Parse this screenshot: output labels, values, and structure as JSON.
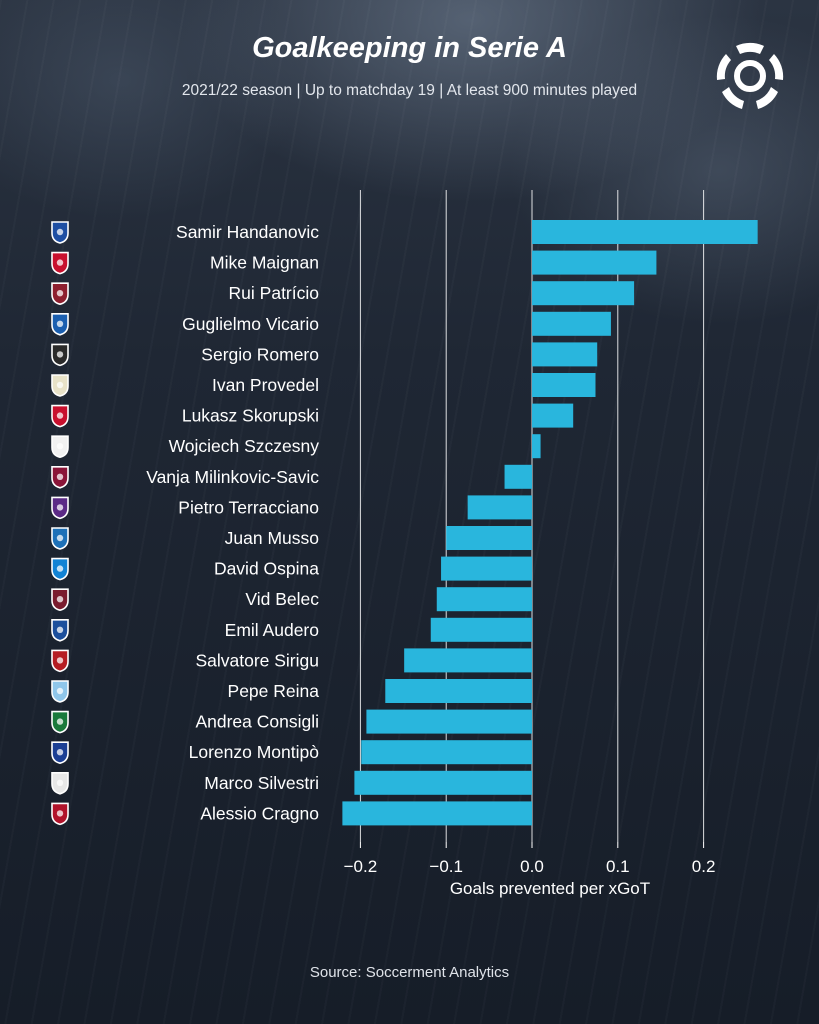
{
  "header": {
    "title": "Goalkeeping in Serie A",
    "subtitle": "2021/22 season | Up to matchday 19 | At least 900 minutes played"
  },
  "footer": {
    "source": "Source: Soccerment Analytics"
  },
  "colors": {
    "bar": "#29b6dd",
    "background": "#1a222f",
    "grid": "#ffffff",
    "text": "#ffffff"
  },
  "logo": {
    "icon": "soccerment-ball-logo-icon"
  },
  "chart_data": {
    "type": "bar",
    "orientation": "horizontal",
    "title": "Goalkeeping in Serie A",
    "subtitle": "2021/22 season | Up to matchday 19 | At least 900 minutes played",
    "xlabel": "Goals prevented per xGoT",
    "ylabel": "",
    "xlim": [
      -0.225,
      0.27
    ],
    "xticks": [
      -0.2,
      -0.1,
      0.0,
      0.1,
      0.2
    ],
    "xtick_labels": [
      "−0.2",
      "−0.1",
      "0.0",
      "0.1",
      "0.2"
    ],
    "grid": "vertical",
    "categories": [
      "Samir Handanovic",
      "Mike Maignan",
      "Rui Patrício",
      "Guglielmo Vicario",
      "Sergio Romero",
      "Ivan Provedel",
      "Lukasz Skorupski",
      "Wojciech Szczesny",
      "Vanja Milinkovic-Savic",
      "Pietro Terracciano",
      "Juan Musso",
      "David Ospina",
      "Vid Belec",
      "Emil Audero",
      "Salvatore Sirigu",
      "Pepe Reina",
      "Andrea Consigli",
      "Lorenzo Montipò",
      "Marco Silvestri",
      "Alessio Cragno"
    ],
    "values": [
      0.263,
      0.145,
      0.119,
      0.092,
      0.076,
      0.074,
      0.048,
      0.01,
      -0.032,
      -0.075,
      -0.1,
      -0.106,
      -0.111,
      -0.118,
      -0.149,
      -0.171,
      -0.193,
      -0.199,
      -0.207,
      -0.221
    ],
    "team_badges": [
      "inter-badge-icon",
      "milan-badge-icon",
      "roma-badge-icon",
      "empoli-badge-icon",
      "venezia-badge-icon",
      "spezia-badge-icon",
      "bologna-badge-icon",
      "juventus-badge-icon",
      "torino-badge-icon",
      "fiorentina-badge-icon",
      "atalanta-badge-icon",
      "napoli-badge-icon",
      "salernitana-badge-icon",
      "sampdoria-badge-icon",
      "genoa-badge-icon",
      "lazio-badge-icon",
      "sassuolo-badge-icon",
      "verona-badge-icon",
      "udinese-badge-icon",
      "cagliari-badge-icon"
    ],
    "badge_colors": [
      "#1e4fa3",
      "#c8102e",
      "#8e1f2f",
      "#1b5fb0",
      "#2a2a2a",
      "#e8e2c8",
      "#c8102e",
      "#f2f2f2",
      "#8a1538",
      "#5b2a86",
      "#1e71b8",
      "#1283d4",
      "#7a1c2e",
      "#1c4f9c",
      "#b51d23",
      "#8fc6ea",
      "#1a7a3c",
      "#1c3f94",
      "#e8e8e8",
      "#b1132b"
    ]
  }
}
